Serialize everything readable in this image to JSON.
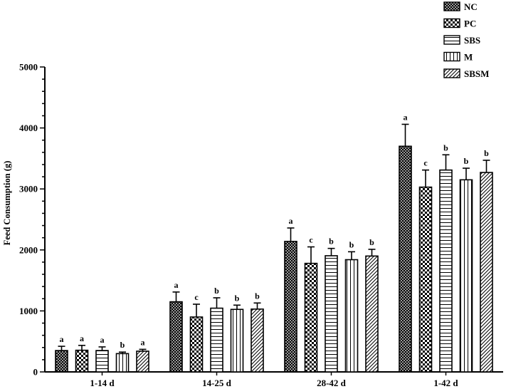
{
  "chart_data": {
    "type": "bar",
    "title": "",
    "xlabel": "",
    "ylabel": "Feed Consumption (g)",
    "ylim": [
      0,
      5000
    ],
    "yticks": [
      0,
      1000,
      2000,
      3000,
      4000,
      5000
    ],
    "grid": false,
    "legend_position": "top-right",
    "categories": [
      "1-14 d",
      "14-25 d",
      "28-42 d",
      "1-42 d"
    ],
    "series": [
      {
        "name": "NC",
        "pattern": "crosshatch-dense",
        "values": [
          350,
          1150,
          2140,
          3700
        ],
        "errors": [
          70,
          160,
          220,
          360
        ],
        "labels": [
          "a",
          "a",
          "a",
          "a"
        ]
      },
      {
        "name": "PC",
        "pattern": "checker",
        "values": [
          355,
          900,
          1780,
          3030
        ],
        "errors": [
          80,
          210,
          270,
          280
        ],
        "labels": [
          "a",
          "c",
          "c",
          "c"
        ]
      },
      {
        "name": "SBS",
        "pattern": "horizontal-lines",
        "values": [
          350,
          1045,
          1905,
          3310
        ],
        "errors": [
          60,
          170,
          120,
          250
        ],
        "labels": [
          "a",
          "b",
          "b",
          "b"
        ]
      },
      {
        "name": "M",
        "pattern": "vertical-lines",
        "values": [
          300,
          1025,
          1840,
          3150
        ],
        "errors": [
          25,
          70,
          130,
          190
        ],
        "labels": [
          "b",
          "b",
          "b",
          "b"
        ]
      },
      {
        "name": "SBSM",
        "pattern": "diagonal-lines",
        "values": [
          340,
          1030,
          1900,
          3270
        ],
        "errors": [
          30,
          100,
          110,
          200
        ],
        "labels": [
          "a",
          "b",
          "b",
          "b"
        ]
      }
    ]
  }
}
